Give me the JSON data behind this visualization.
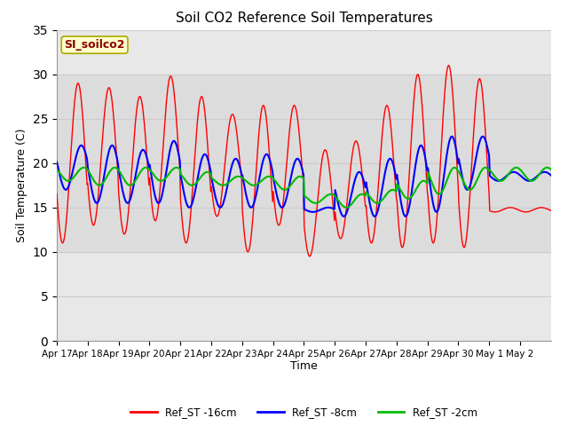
{
  "title": "Soil CO2 Reference Soil Temperatures",
  "xlabel": "Time",
  "ylabel": "Soil Temperature (C)",
  "ylim": [
    0,
    35
  ],
  "yticks": [
    0,
    5,
    10,
    15,
    20,
    25,
    30,
    35
  ],
  "annotation_text": "SI_soilco2",
  "annotation_color": "#8B0000",
  "annotation_bg": "#FFFFCC",
  "annotation_border": "#AAAA00",
  "bg_band_low": 10,
  "bg_band_high": 30,
  "line_16cm_color": "#FF0000",
  "line_8cm_color": "#0000FF",
  "line_2cm_color": "#00BB00",
  "legend_labels": [
    "Ref_ST -16cm",
    "Ref_ST -8cm",
    "Ref_ST -2cm"
  ],
  "x_tick_labels": [
    "Apr 17",
    "Apr 18",
    "Apr 19",
    "Apr 20",
    "Apr 21",
    "Apr 22",
    "Apr 23",
    "Apr 24",
    "Apr 25",
    "Apr 26",
    "Apr 27",
    "Apr 28",
    "Apr 29",
    "Apr 30",
    "May 1",
    "May 2"
  ],
  "grid_color": "#CCCCCC",
  "plot_bg": "#E8E8E8",
  "fig_bg": "#FFFFFF",
  "red_peaks": [
    29.0,
    28.5,
    27.5,
    29.8,
    27.5,
    25.5,
    26.5,
    26.5,
    21.5,
    22.5,
    26.5,
    30.0,
    31.0,
    29.5,
    15.0
  ],
  "red_troughs": [
    11.0,
    13.0,
    12.0,
    13.5,
    11.0,
    14.0,
    10.0,
    13.0,
    9.5,
    11.5,
    11.0,
    10.5,
    11.0,
    10.5,
    14.5
  ],
  "blue_peaks": [
    22.0,
    22.0,
    21.5,
    22.5,
    21.0,
    20.5,
    21.0,
    20.5,
    15.0,
    19.0,
    20.5,
    22.0,
    23.0,
    23.0,
    19.0
  ],
  "blue_troughs": [
    17.0,
    15.5,
    15.5,
    15.5,
    15.0,
    15.0,
    15.0,
    15.0,
    14.5,
    14.0,
    14.0,
    14.0,
    14.5,
    17.0,
    18.0
  ],
  "green_peaks": [
    19.5,
    19.5,
    19.5,
    19.5,
    19.0,
    18.5,
    18.5,
    18.5,
    16.5,
    16.5,
    17.0,
    18.0,
    19.5,
    19.5,
    19.5
  ],
  "green_troughs": [
    18.0,
    17.5,
    17.5,
    18.0,
    17.5,
    17.5,
    17.5,
    17.0,
    15.5,
    15.0,
    15.5,
    16.0,
    16.5,
    17.0,
    18.0
  ]
}
